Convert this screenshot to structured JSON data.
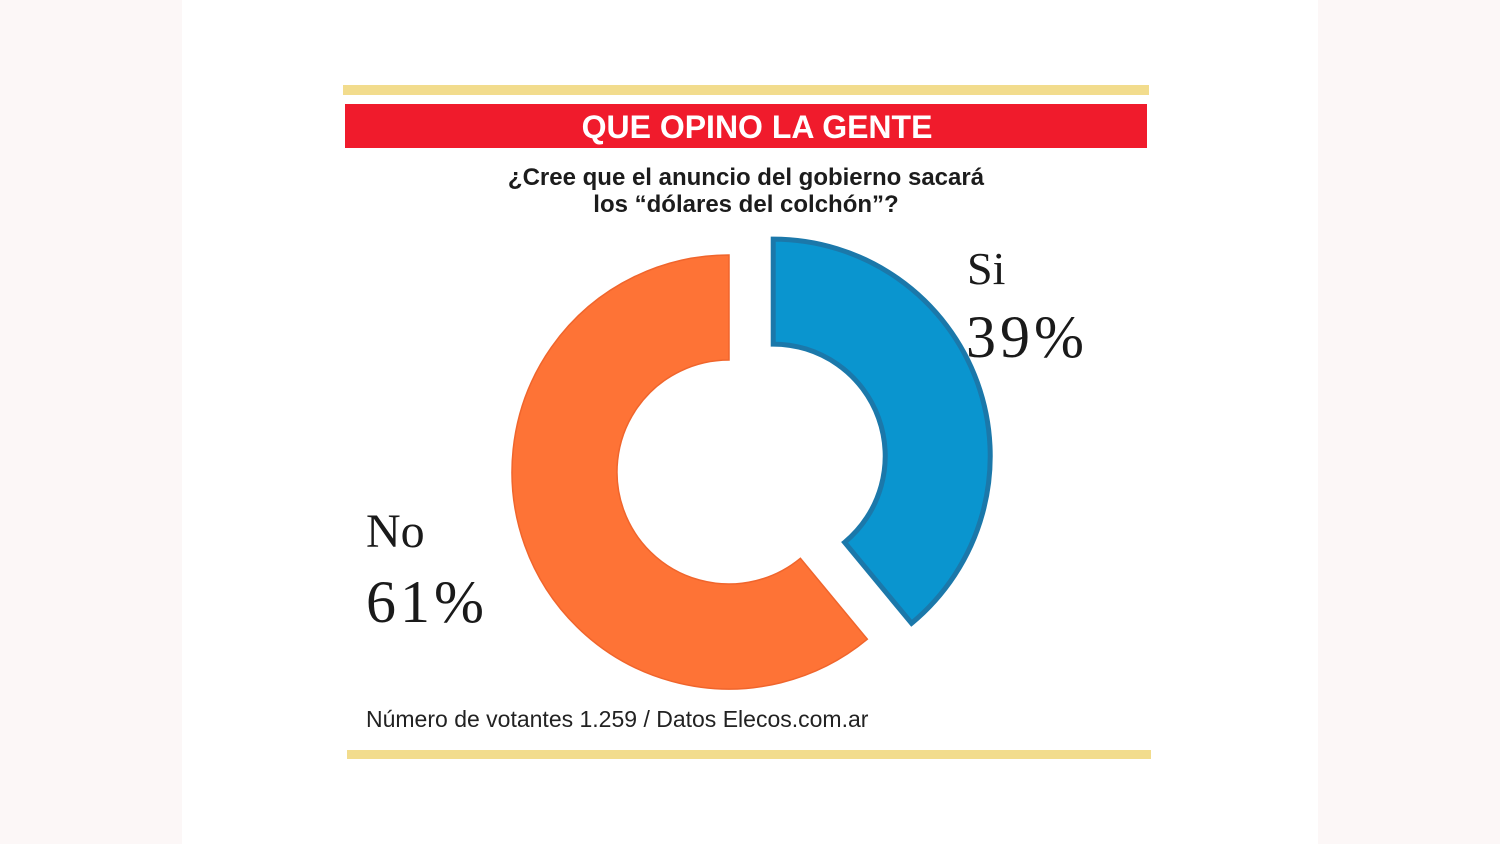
{
  "header": {
    "title": "QUE OPINO LA GENTE"
  },
  "footer": {
    "source": "Número de votantes 1.259 / Datos Elecos.com.ar"
  },
  "colors": {
    "header_bar": "#f01b2c",
    "rule": "#f2dc8d",
    "label_text": "#1a1a1a"
  },
  "chart_data": {
    "type": "pie",
    "donut": true,
    "title": "¿Cree que el anuncio del gobierno sacará los “dólares del colchón”?",
    "categories": [
      "Si",
      "No"
    ],
    "values": [
      39,
      61
    ],
    "unit": "%",
    "data_labels": [
      "39%",
      "61%"
    ],
    "colors": [
      "#0a95cf",
      "#fe7336"
    ],
    "stroke_colors": [
      "#1b78aa",
      "#f0652c"
    ],
    "exploded": [
      "Si"
    ],
    "start": "12 o'clock, clockwise",
    "legend": "none"
  }
}
